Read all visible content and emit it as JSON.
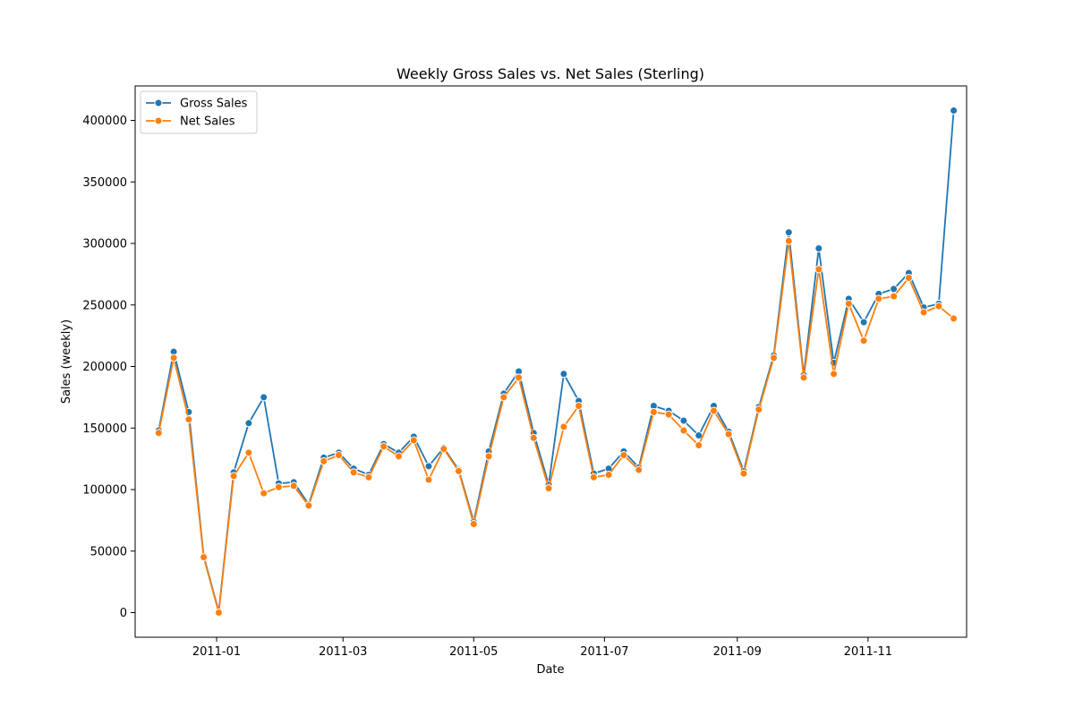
{
  "chart_data": {
    "type": "line",
    "title": "Weekly Gross Sales vs. Net Sales (Sterling)",
    "xlabel": "Date",
    "ylabel": "Sales (weekly)",
    "xlim": [
      "2010-11-24",
      "2011-12-17"
    ],
    "ylim": [
      -20000,
      428000
    ],
    "x_ticks": [
      "2011-01",
      "2011-03",
      "2011-05",
      "2011-07",
      "2011-09",
      "2011-11"
    ],
    "y_ticks": [
      0,
      50000,
      100000,
      150000,
      200000,
      250000,
      300000,
      350000,
      400000
    ],
    "grid": false,
    "legend": "top-left",
    "x": [
      "2010-12-05",
      "2010-12-12",
      "2010-12-19",
      "2010-12-26",
      "2011-01-02",
      "2011-01-09",
      "2011-01-16",
      "2011-01-23",
      "2011-01-30",
      "2011-02-06",
      "2011-02-13",
      "2011-02-20",
      "2011-02-27",
      "2011-03-06",
      "2011-03-13",
      "2011-03-20",
      "2011-03-27",
      "2011-04-03",
      "2011-04-10",
      "2011-04-17",
      "2011-04-24",
      "2011-05-01",
      "2011-05-08",
      "2011-05-15",
      "2011-05-22",
      "2011-05-29",
      "2011-06-05",
      "2011-06-12",
      "2011-06-19",
      "2011-06-26",
      "2011-07-03",
      "2011-07-10",
      "2011-07-17",
      "2011-07-24",
      "2011-07-31",
      "2011-08-07",
      "2011-08-14",
      "2011-08-21",
      "2011-08-28",
      "2011-09-04",
      "2011-09-11",
      "2011-09-18",
      "2011-09-25",
      "2011-10-02",
      "2011-10-09",
      "2011-10-16",
      "2011-10-23",
      "2011-10-30",
      "2011-11-06",
      "2011-11-13",
      "2011-11-20",
      "2011-11-27",
      "2011-12-04",
      "2011-12-11"
    ],
    "series": [
      {
        "name": "Gross Sales",
        "color": "#1f77b4",
        "values": [
          148000,
          212000,
          163000,
          46000,
          1000,
          114000,
          154000,
          175000,
          105000,
          106000,
          88000,
          126000,
          130000,
          117000,
          112000,
          137000,
          130000,
          143000,
          119000,
          134000,
          116000,
          74000,
          131000,
          178000,
          196000,
          146000,
          104000,
          194000,
          172000,
          113000,
          117000,
          131000,
          118000,
          168000,
          164000,
          156000,
          144000,
          168000,
          147000,
          115000,
          167000,
          209000,
          309000,
          193000,
          296000,
          203000,
          255000,
          236000,
          259000,
          263000,
          276000,
          248000,
          251000,
          408000
        ]
      },
      {
        "name": "Net Sales",
        "color": "#ff7f0e",
        "values": [
          146000,
          207000,
          157000,
          45000,
          0,
          111000,
          130000,
          97000,
          102000,
          103000,
          87000,
          123000,
          128000,
          114000,
          110000,
          135000,
          127000,
          140000,
          108000,
          133000,
          115000,
          72000,
          127000,
          175000,
          191000,
          142000,
          101000,
          151000,
          168000,
          110000,
          112000,
          128000,
          116000,
          163000,
          161000,
          148000,
          136000,
          164000,
          145000,
          113000,
          165000,
          207000,
          302000,
          191000,
          279000,
          194000,
          251000,
          221000,
          255000,
          257000,
          272000,
          244000,
          249000,
          239000
        ]
      }
    ]
  }
}
